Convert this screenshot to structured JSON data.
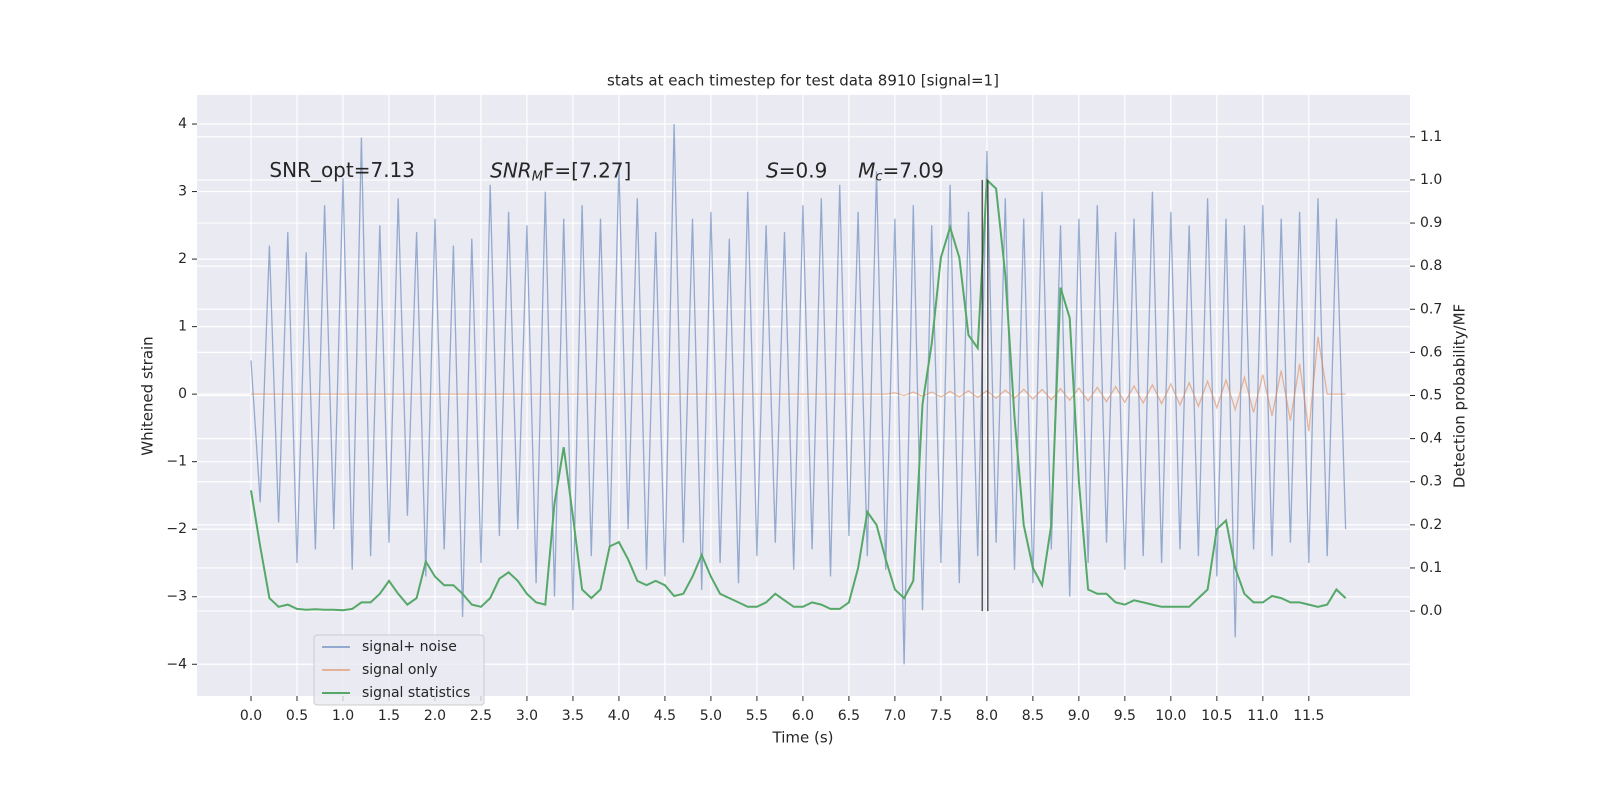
{
  "chart_data": {
    "type": "line",
    "title": "stats at each timestep for test data 8910 [signal=1]",
    "xlabel": "Time (s)",
    "ylabel": "Whitened strain",
    "y2label": "Detection probability/MF",
    "xlim": [
      -0.587,
      12.6
    ],
    "ylim": [
      -4.47,
      4.43
    ],
    "y2lim": [
      -0.197,
      1.197
    ],
    "xticks": [
      {
        "value": 0,
        "label": "0.0"
      },
      {
        "value": 0.5,
        "label": "0.5"
      },
      {
        "value": 1,
        "label": "1.0"
      },
      {
        "value": 1.5,
        "label": "1.5"
      },
      {
        "value": 2,
        "label": "2.0"
      },
      {
        "value": 2.5,
        "label": "2.5"
      },
      {
        "value": 3,
        "label": "3.0"
      },
      {
        "value": 3.5,
        "label": "3.5"
      },
      {
        "value": 4,
        "label": "4.0"
      },
      {
        "value": 4.5,
        "label": "4.5"
      },
      {
        "value": 5,
        "label": "5.0"
      },
      {
        "value": 5.5,
        "label": "5.5"
      },
      {
        "value": 6,
        "label": "6.0"
      },
      {
        "value": 6.5,
        "label": "6.5"
      },
      {
        "value": 7,
        "label": "7.0"
      },
      {
        "value": 7.5,
        "label": "7.5"
      },
      {
        "value": 8,
        "label": "8.0"
      },
      {
        "value": 8.5,
        "label": "8.5"
      },
      {
        "value": 9,
        "label": "9.0"
      },
      {
        "value": 9.5,
        "label": "9.5"
      },
      {
        "value": 10,
        "label": "10.0"
      },
      {
        "value": 10.5,
        "label": "10.5"
      },
      {
        "value": 11,
        "label": "11.0"
      },
      {
        "value": 11.5,
        "label": "11.5"
      }
    ],
    "yticks": [
      {
        "value": -4,
        "label": "−4"
      },
      {
        "value": -3,
        "label": "−3"
      },
      {
        "value": -2,
        "label": "−2"
      },
      {
        "value": -1,
        "label": "−1"
      },
      0,
      1,
      2,
      3,
      4
    ],
    "y2ticks": [
      {
        "value": 0,
        "label": "0.0"
      },
      {
        "value": 0.1,
        "label": "0.1"
      },
      {
        "value": 0.2,
        "label": "0.2"
      },
      {
        "value": 0.3,
        "label": "0.3"
      },
      {
        "value": 0.4,
        "label": "0.4"
      },
      {
        "value": 0.5,
        "label": "0.5"
      },
      {
        "value": 0.6,
        "label": "0.6"
      },
      {
        "value": 0.7,
        "label": "0.7"
      },
      {
        "value": 0.8,
        "label": "0.8"
      },
      {
        "value": 0.9,
        "label": "0.9"
      },
      {
        "value": 1.0,
        "label": "1.0"
      },
      {
        "value": 1.1,
        "label": "1.1"
      }
    ],
    "grid": true,
    "legend": "lower left",
    "x": [
      0,
      0.1,
      0.2,
      0.3,
      0.4,
      0.5,
      0.6,
      0.7,
      0.8,
      0.9,
      1,
      1.1,
      1.2,
      1.3,
      1.4,
      1.5,
      1.6,
      1.7,
      1.8,
      1.9,
      2,
      2.1,
      2.2,
      2.3,
      2.4,
      2.5,
      2.6,
      2.7,
      2.8,
      2.9,
      3,
      3.1,
      3.2,
      3.3,
      3.4,
      3.5,
      3.6,
      3.7,
      3.8,
      3.9,
      4,
      4.1,
      4.2,
      4.3,
      4.4,
      4.5,
      4.6,
      4.7,
      4.8,
      4.9,
      5,
      5.1,
      5.2,
      5.3,
      5.4,
      5.5,
      5.6,
      5.7,
      5.8,
      5.9,
      6,
      6.1,
      6.2,
      6.3,
      6.4,
      6.5,
      6.6,
      6.7,
      6.8,
      6.9,
      7,
      7.1,
      7.2,
      7.3,
      7.4,
      7.5,
      7.6,
      7.7,
      7.8,
      7.9,
      8,
      8.1,
      8.2,
      8.3,
      8.4,
      8.5,
      8.6,
      8.7,
      8.8,
      8.9,
      9,
      9.1,
      9.2,
      9.3,
      9.4,
      9.5,
      9.6,
      9.7,
      9.8,
      9.9,
      10,
      10.1,
      10.2,
      10.3,
      10.4,
      10.5,
      10.6,
      10.7,
      10.8,
      10.9,
      11,
      11.1,
      11.2,
      11.3,
      11.4,
      11.5,
      11.6,
      11.7,
      11.8,
      11.9
    ],
    "series": [
      {
        "name": "signal+ noise",
        "color": "#4c72b0",
        "values": [
          0.5,
          -1.6,
          2.2,
          -1.9,
          2.4,
          -2.5,
          2.1,
          -2.3,
          2.8,
          -2.0,
          3.2,
          -2.6,
          3.8,
          -2.4,
          2.5,
          -2.2,
          2.9,
          -1.8,
          2.4,
          -2.7,
          2.6,
          -2.3,
          2.2,
          -3.3,
          2.3,
          -2.5,
          3.1,
          -2.1,
          2.7,
          -2.0,
          2.5,
          -2.8,
          3.0,
          -3.0,
          2.6,
          -3.2,
          2.8,
          -2.4,
          2.6,
          -2.3,
          3.4,
          -2.0,
          2.9,
          -2.6,
          2.4,
          -2.7,
          4.0,
          -2.2,
          2.6,
          -2.9,
          2.7,
          -2.5,
          2.3,
          -2.8,
          3.0,
          -2.4,
          2.5,
          -2.2,
          2.4,
          -2.6,
          2.8,
          -2.3,
          2.9,
          -2.7,
          3.1,
          -2.1,
          2.7,
          -2.4,
          3.3,
          -2.6,
          2.6,
          -4.0,
          2.8,
          -3.2,
          2.5,
          -2.5,
          3.1,
          -2.8,
          2.7,
          -2.4,
          3.6,
          -2.2,
          2.9,
          -2.6,
          2.6,
          -2.8,
          3.0,
          -2.3,
          2.5,
          -3.0,
          2.6,
          -2.5,
          2.8,
          -2.2,
          2.4,
          -2.6,
          2.6,
          -2.4,
          3.0,
          -2.5,
          2.7,
          -2.3,
          2.5,
          -2.4,
          2.9,
          -2.7,
          2.6,
          -3.6,
          2.5,
          -2.3,
          2.8,
          -2.4,
          2.6,
          -2.2,
          2.7,
          -2.5,
          2.9,
          -2.4,
          2.6,
          -2.0
        ]
      },
      {
        "name": "signal only",
        "color": "#dd8452",
        "values": [
          0,
          0,
          0,
          0,
          0,
          0,
          0,
          0,
          0,
          0,
          0,
          0,
          0,
          0,
          0,
          0,
          0,
          0,
          0,
          0,
          0,
          0,
          0,
          0,
          0,
          0,
          0,
          0,
          0,
          0,
          0,
          0,
          0,
          0,
          0,
          0,
          0,
          0,
          0,
          0,
          0,
          0,
          0,
          0,
          0,
          0,
          0,
          0,
          0,
          0,
          0,
          0,
          0,
          0,
          0,
          0,
          0,
          0,
          0,
          0,
          0,
          0,
          0,
          0,
          0,
          0,
          0,
          0,
          0,
          0,
          0.02,
          -0.02,
          0.03,
          -0.03,
          0.03,
          -0.04,
          0.04,
          -0.04,
          0.05,
          -0.05,
          0.05,
          -0.06,
          0.06,
          -0.06,
          0.07,
          -0.07,
          0.07,
          -0.08,
          0.08,
          -0.09,
          0.09,
          -0.1,
          0.1,
          -0.11,
          0.11,
          -0.12,
          0.12,
          -0.13,
          0.14,
          -0.14,
          0.15,
          -0.16,
          0.17,
          -0.18,
          0.19,
          -0.2,
          0.21,
          -0.23,
          0.25,
          -0.27,
          0.29,
          -0.32,
          0.35,
          -0.39,
          0.45,
          -0.55,
          0.85,
          0,
          0,
          0
        ]
      },
      {
        "name": "signal statistics",
        "color": "#55a868",
        "axis": "y2",
        "values": [
          0.28,
          0.15,
          0.03,
          0.01,
          0.015,
          0.005,
          0.003,
          0.004,
          0.003,
          0.003,
          0.002,
          0.005,
          0.02,
          0.02,
          0.04,
          0.07,
          0.04,
          0.015,
          0.03,
          0.115,
          0.08,
          0.06,
          0.06,
          0.04,
          0.015,
          0.01,
          0.03,
          0.075,
          0.09,
          0.07,
          0.04,
          0.02,
          0.015,
          0.25,
          0.38,
          0.22,
          0.05,
          0.03,
          0.05,
          0.15,
          0.16,
          0.12,
          0.07,
          0.06,
          0.07,
          0.06,
          0.035,
          0.04,
          0.08,
          0.13,
          0.08,
          0.04,
          0.03,
          0.02,
          0.01,
          0.01,
          0.02,
          0.04,
          0.025,
          0.01,
          0.01,
          0.02,
          0.015,
          0.005,
          0.005,
          0.02,
          0.1,
          0.23,
          0.2,
          0.12,
          0.05,
          0.03,
          0.07,
          0.48,
          0.62,
          0.82,
          0.89,
          0.82,
          0.64,
          0.61,
          1.0,
          0.98,
          0.78,
          0.45,
          0.2,
          0.1,
          0.06,
          0.2,
          0.75,
          0.68,
          0.3,
          0.05,
          0.04,
          0.04,
          0.02,
          0.015,
          0.025,
          0.02,
          0.015,
          0.01,
          0.01,
          0.01,
          0.01,
          0.03,
          0.05,
          0.19,
          0.21,
          0.1,
          0.04,
          0.02,
          0.02,
          0.035,
          0.03,
          0.02,
          0.02,
          0.015,
          0.01,
          0.015,
          0.05,
          0.03
        ]
      }
    ],
    "vlines": [
      7.95,
      8.01
    ],
    "annotations": [
      {
        "x": 0.2,
        "y": 3.3,
        "text": "SNR_opt=7.13"
      },
      {
        "x": 2.6,
        "y": 3.3,
        "base": "SNR",
        "sub": "M",
        "rest": "F=[7.27]"
      },
      {
        "x": 5.6,
        "y": 3.3,
        "base": "S",
        "rest": "=0.9"
      },
      {
        "x": 6.6,
        "y": 3.3,
        "base": "M",
        "sub": "c",
        "rest": "=7.09"
      }
    ]
  }
}
